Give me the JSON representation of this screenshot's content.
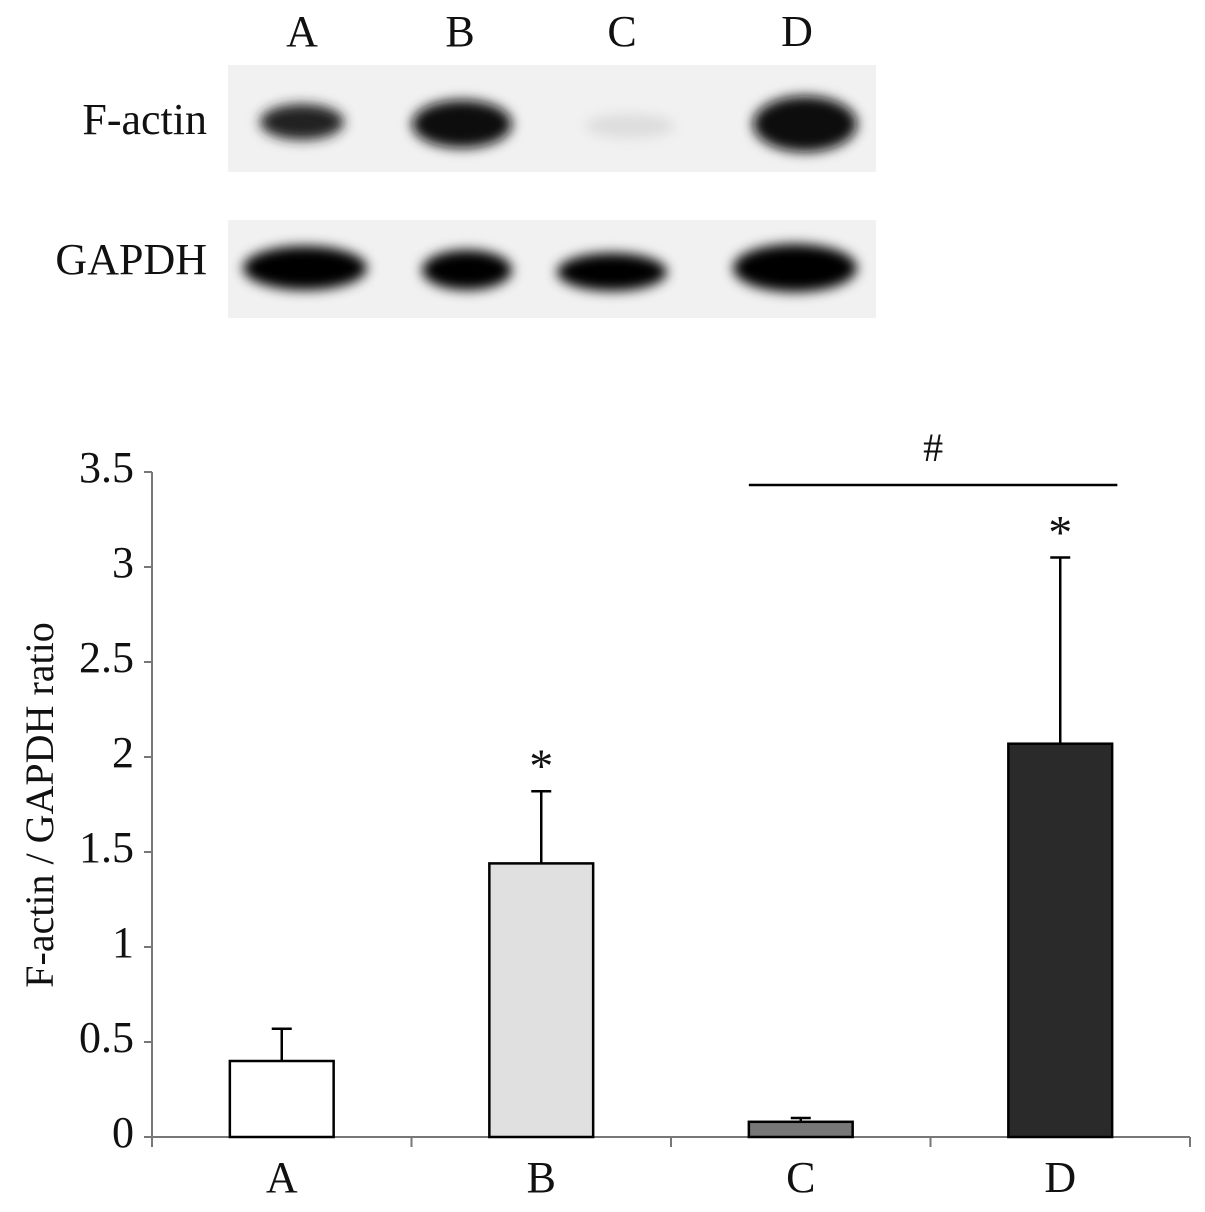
{
  "blot": {
    "lanes": [
      "A",
      "B",
      "C",
      "D"
    ],
    "rows": [
      "F-actin",
      "GAPDH"
    ]
  },
  "chart_data": {
    "type": "bar",
    "categories": [
      "A",
      "B",
      "C",
      "D"
    ],
    "values": [
      0.4,
      1.44,
      0.08,
      2.07
    ],
    "errors": [
      0.17,
      0.38,
      0.02,
      0.98
    ],
    "colors": [
      "#ffffff",
      "#e0e0e0",
      "#777777",
      "#2a2a2a"
    ],
    "ylabel": "F-actin / GAPDH ratio",
    "ylim": [
      0,
      3.5
    ],
    "yticks": [
      0,
      0.5,
      1,
      1.5,
      2,
      2.5,
      3,
      3.5
    ],
    "grid": false,
    "annotations": [
      {
        "text": "*",
        "x": "B"
      },
      {
        "text": "*",
        "x": "D"
      },
      {
        "text": "#",
        "x": [
          "C",
          "D"
        ]
      }
    ]
  }
}
